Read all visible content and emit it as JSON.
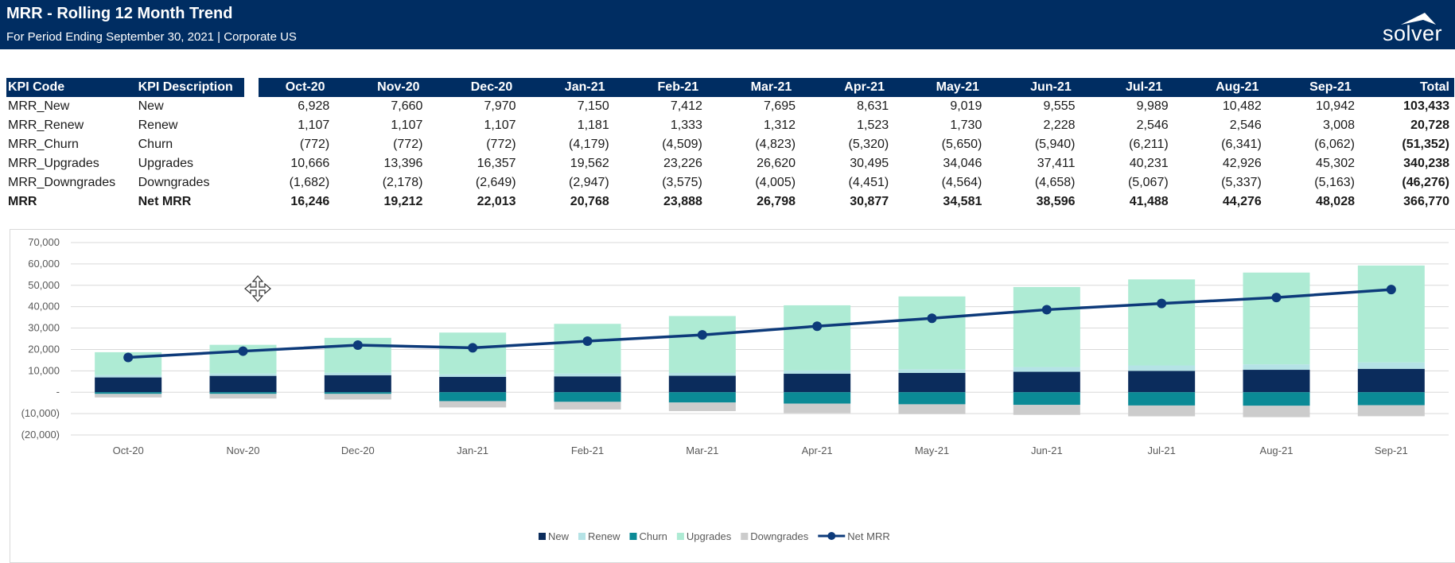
{
  "header": {
    "title": "MRR - Rolling 12 Month Trend",
    "subtitle": "For Period Ending September 30, 2021 | Corporate US",
    "logo_text": "solver"
  },
  "colors": {
    "banner": "#002d62",
    "new": "#0b2c5c",
    "renew": "#b5e3e6",
    "churn": "#0b8a96",
    "upgrades": "#aeebd4",
    "downgrades": "#cccccc",
    "net_mrr": "#0d3a7a"
  },
  "table": {
    "col_code": "KPI Code",
    "col_desc": "KPI Description",
    "months": [
      "Oct-20",
      "Nov-20",
      "Dec-20",
      "Jan-21",
      "Feb-21",
      "Mar-21",
      "Apr-21",
      "May-21",
      "Jun-21",
      "Jul-21",
      "Aug-21",
      "Sep-21"
    ],
    "col_total": "Total",
    "rows": [
      {
        "code": "MRR_New",
        "desc": "New",
        "values": [
          "6,928",
          "7,660",
          "7,970",
          "7,150",
          "7,412",
          "7,695",
          "8,631",
          "9,019",
          "9,555",
          "9,989",
          "10,482",
          "10,942"
        ],
        "total": "103,433",
        "bold": false
      },
      {
        "code": "MRR_Renew",
        "desc": "Renew",
        "values": [
          "1,107",
          "1,107",
          "1,107",
          "1,181",
          "1,333",
          "1,312",
          "1,523",
          "1,730",
          "2,228",
          "2,546",
          "2,546",
          "3,008"
        ],
        "total": "20,728",
        "bold": false
      },
      {
        "code": "MRR_Churn",
        "desc": "Churn",
        "values": [
          "(772)",
          "(772)",
          "(772)",
          "(4,179)",
          "(4,509)",
          "(4,823)",
          "(5,320)",
          "(5,650)",
          "(5,940)",
          "(6,211)",
          "(6,341)",
          "(6,062)"
        ],
        "total": "(51,352)",
        "bold": false
      },
      {
        "code": "MRR_Upgrades",
        "desc": "Upgrades",
        "values": [
          "10,666",
          "13,396",
          "16,357",
          "19,562",
          "23,226",
          "26,620",
          "30,495",
          "34,046",
          "37,411",
          "40,231",
          "42,926",
          "45,302"
        ],
        "total": "340,238",
        "bold": false
      },
      {
        "code": "MRR_Downgrades",
        "desc": "Downgrades",
        "values": [
          "(1,682)",
          "(2,178)",
          "(2,649)",
          "(2,947)",
          "(3,575)",
          "(4,005)",
          "(4,451)",
          "(4,564)",
          "(4,658)",
          "(5,067)",
          "(5,337)",
          "(5,163)"
        ],
        "total": "(46,276)",
        "bold": false
      },
      {
        "code": "MRR",
        "desc": "Net MRR",
        "values": [
          "16,246",
          "19,212",
          "22,013",
          "20,768",
          "23,888",
          "26,798",
          "30,877",
          "34,581",
          "38,596",
          "41,488",
          "44,276",
          "48,028"
        ],
        "total": "366,770",
        "bold": true
      }
    ]
  },
  "chart_data": {
    "type": "bar",
    "stacked": true,
    "categories": [
      "Oct-20",
      "Nov-20",
      "Dec-20",
      "Jan-21",
      "Feb-21",
      "Mar-21",
      "Apr-21",
      "May-21",
      "Jun-21",
      "Jul-21",
      "Aug-21",
      "Sep-21"
    ],
    "ylim": [
      -20000,
      70000
    ],
    "yticks": [
      70000,
      60000,
      50000,
      40000,
      30000,
      20000,
      10000,
      0,
      -10000,
      -20000
    ],
    "ytick_labels": [
      "70,000",
      "60,000",
      "50,000",
      "40,000",
      "30,000",
      "20,000",
      "10,000",
      "-",
      "(10,000)",
      "(20,000)"
    ],
    "grid": true,
    "legend_position": "bottom",
    "series": [
      {
        "name": "New",
        "kind": "bar",
        "color": "#0b2c5c",
        "values": [
          6928,
          7660,
          7970,
          7150,
          7412,
          7695,
          8631,
          9019,
          9555,
          9989,
          10482,
          10942
        ]
      },
      {
        "name": "Renew",
        "kind": "bar",
        "color": "#b5e3e6",
        "values": [
          1107,
          1107,
          1107,
          1181,
          1333,
          1312,
          1523,
          1730,
          2228,
          2546,
          2546,
          3008
        ]
      },
      {
        "name": "Churn",
        "kind": "bar",
        "color": "#0b8a96",
        "values": [
          -772,
          -772,
          -772,
          -4179,
          -4509,
          -4823,
          -5320,
          -5650,
          -5940,
          -6211,
          -6341,
          -6062
        ]
      },
      {
        "name": "Upgrades",
        "kind": "bar",
        "color": "#aeebd4",
        "values": [
          10666,
          13396,
          16357,
          19562,
          23226,
          26620,
          30495,
          34046,
          37411,
          40231,
          42926,
          45302
        ]
      },
      {
        "name": "Downgrades",
        "kind": "bar",
        "color": "#cccccc",
        "values": [
          -1682,
          -2178,
          -2649,
          -2947,
          -3575,
          -4005,
          -4451,
          -4564,
          -4658,
          -5067,
          -5337,
          -5163
        ]
      },
      {
        "name": "Net MRR",
        "kind": "line",
        "color": "#0d3a7a",
        "values": [
          16246,
          19212,
          22013,
          20768,
          23888,
          26798,
          30877,
          34581,
          38596,
          41488,
          44276,
          48028
        ]
      }
    ]
  }
}
